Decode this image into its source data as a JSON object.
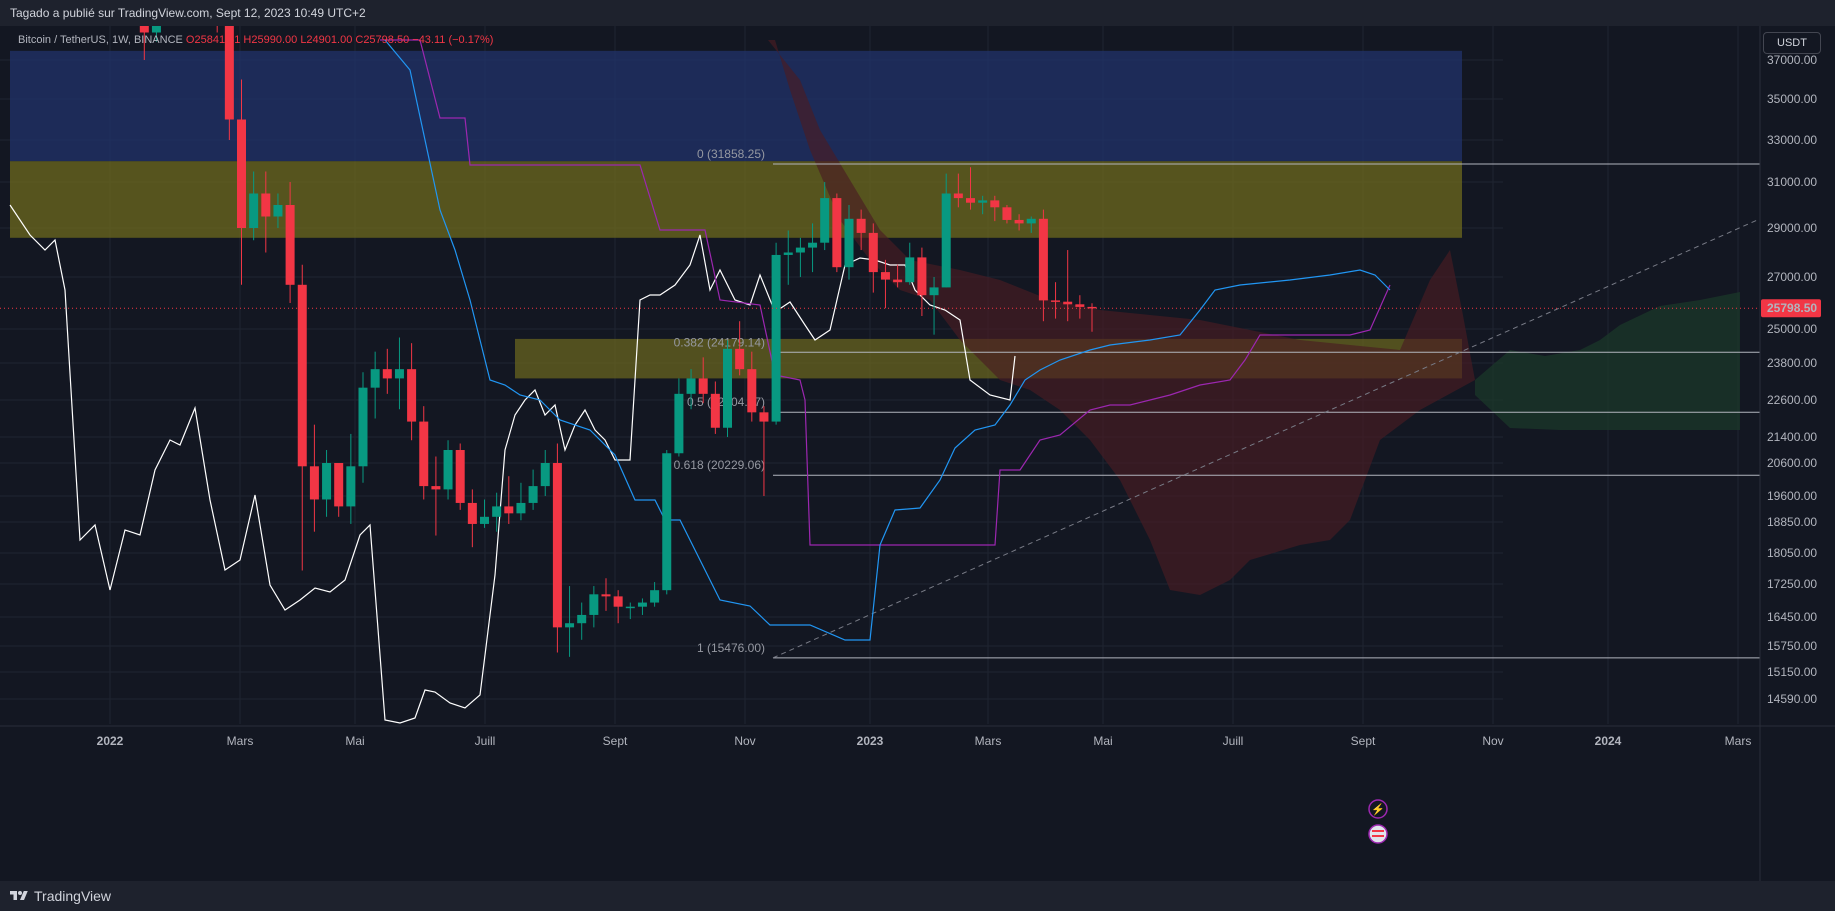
{
  "header": {
    "publish_line": "Tagado a publié sur TradingView.com, Sept 12, 2023 10:49 UTC+2"
  },
  "legend": {
    "symbol": "Bitcoin / TetherUS, 1W, BINANCE",
    "o": "O25841.61",
    "h": "H25990.00",
    "l": "L24901.00",
    "c": "C25798.50",
    "change": "−43.11 (−0.17%)"
  },
  "currency_button": "USDT",
  "footer": {
    "brand": "TradingView"
  },
  "colors": {
    "background": "#131722",
    "up": "#089981",
    "down": "#f23645",
    "tenkan": "#2196f3",
    "kijun": "#9c27b0",
    "chikou": "#ffffff",
    "cloud_bull": "#1b3a2a",
    "cloud_bear": "#4a1c24",
    "zone_top": "#22336b",
    "zone_yellow": "#6e6a1e"
  },
  "chart_data": {
    "type": "candlestick",
    "symbol": "Bitcoin / TetherUS",
    "interval": "1W",
    "exchange": "BINANCE",
    "last_price": "25798.50",
    "x_tick_labels": [
      "2022",
      "Mars",
      "Mai",
      "Juill",
      "Sept",
      "Nov",
      "2023",
      "Mars",
      "Mai",
      "Juill",
      "Sept",
      "Nov",
      "2024",
      "Mars"
    ],
    "y_tick_labels": [
      "37000.00",
      "35000.00",
      "33000.00",
      "31000.00",
      "29000.00",
      "27000.00",
      "25000.00",
      "23800.00",
      "22600.00",
      "21400.00",
      "20600.00",
      "19600.00",
      "18850.00",
      "18050.00",
      "17250.00",
      "16450.00",
      "15750.00",
      "15150.00",
      "14590.00"
    ],
    "fibonacci_levels": [
      {
        "label": "0 (31858.25)",
        "price": 31858.25
      },
      {
        "label": "0.382 (24179.14)",
        "price": 24179.14
      },
      {
        "label": "0.5 (22204.47)",
        "price": 22204.47
      },
      {
        "label": "0.618 (20229.06)",
        "price": 20229.06
      },
      {
        "label": "1 (15476.00)",
        "price": 15476.0
      }
    ],
    "candles": [
      [
        47000,
        48500,
        40500,
        43000
      ],
      [
        43000,
        44000,
        39500,
        42000
      ],
      [
        42000,
        43000,
        37000,
        38500
      ],
      [
        38500,
        44000,
        38000,
        42500
      ],
      [
        42500,
        45500,
        39000,
        44500
      ],
      [
        44500,
        48000,
        43000,
        46800
      ],
      [
        46800,
        47500,
        41500,
        42500
      ],
      [
        42500,
        44500,
        40500,
        43500
      ],
      [
        43500,
        44000,
        38500,
        39500
      ],
      [
        39500,
        40500,
        33000,
        34000
      ],
      [
        34000,
        36000,
        26700,
        29000
      ],
      [
        29000,
        31500,
        28500,
        30500
      ],
      [
        30500,
        31500,
        28000,
        29500
      ],
      [
        29500,
        30500,
        29000,
        30000
      ],
      [
        30000,
        31000,
        26000,
        26700
      ],
      [
        26700,
        27500,
        17600,
        20500
      ],
      [
        20500,
        21800,
        18600,
        19500
      ],
      [
        19500,
        21000,
        19000,
        20600
      ],
      [
        20600,
        20600,
        19000,
        19300
      ],
      [
        19300,
        21500,
        18800,
        20500
      ],
      [
        20500,
        23500,
        20000,
        23000
      ],
      [
        23000,
        24200,
        22000,
        23600
      ],
      [
        23600,
        24300,
        22800,
        23300
      ],
      [
        23300,
        24700,
        22300,
        23600
      ],
      [
        23600,
        24500,
        21300,
        21900
      ],
      [
        21900,
        22400,
        19500,
        19900
      ],
      [
        19900,
        20800,
        18500,
        19800
      ],
      [
        19800,
        21300,
        19500,
        21000
      ],
      [
        21000,
        21200,
        19200,
        19400
      ],
      [
        19400,
        19800,
        18200,
        18800
      ],
      [
        18800,
        19500,
        18700,
        19000
      ],
      [
        19000,
        19700,
        18600,
        19300
      ],
      [
        19300,
        20200,
        18800,
        19100
      ],
      [
        19100,
        20000,
        18900,
        19400
      ],
      [
        19400,
        20400,
        19200,
        19900
      ],
      [
        19900,
        21000,
        19600,
        20600
      ],
      [
        20600,
        21200,
        15600,
        16200
      ],
      [
        16200,
        17200,
        15500,
        16300
      ],
      [
        16300,
        16800,
        15900,
        16500
      ],
      [
        16500,
        17200,
        16200,
        17000
      ],
      [
        17000,
        17400,
        16600,
        16950
      ],
      [
        16950,
        17100,
        16300,
        16700
      ],
      [
        16700,
        16800,
        16400,
        16700
      ],
      [
        16700,
        16900,
        16500,
        16800
      ],
      [
        16800,
        17300,
        16700,
        17100
      ],
      [
        17100,
        21000,
        17000,
        20900
      ],
      [
        20900,
        23300,
        20800,
        22800
      ],
      [
        22800,
        23600,
        22300,
        23300
      ],
      [
        23300,
        24000,
        22500,
        22800
      ],
      [
        22800,
        23200,
        21500,
        21700
      ],
      [
        21700,
        24600,
        21400,
        24300
      ],
      [
        24300,
        25300,
        23400,
        23600
      ],
      [
        23600,
        24200,
        21900,
        22200
      ],
      [
        22200,
        22400,
        19600,
        21900
      ],
      [
        21900,
        28400,
        21800,
        27900
      ],
      [
        27900,
        28900,
        26700,
        28000
      ],
      [
        28000,
        28600,
        27000,
        28200
      ],
      [
        28200,
        29200,
        27200,
        28400
      ],
      [
        28400,
        31000,
        28100,
        30300
      ],
      [
        30300,
        30500,
        27200,
        27400
      ],
      [
        27400,
        30000,
        26900,
        29400
      ],
      [
        29400,
        29800,
        28100,
        28800
      ],
      [
        28800,
        29200,
        26400,
        27200
      ],
      [
        27200,
        27700,
        25800,
        26900
      ],
      [
        26900,
        27500,
        26600,
        26800
      ],
      [
        26800,
        28400,
        26700,
        27800
      ],
      [
        27800,
        28200,
        25500,
        26300
      ],
      [
        26300,
        27000,
        24800,
        26600
      ],
      [
        26600,
        31400,
        26600,
        30500
      ],
      [
        30500,
        31400,
        29900,
        30300
      ],
      [
        30300,
        31700,
        29800,
        30100
      ],
      [
        30100,
        30400,
        29600,
        30200
      ],
      [
        30200,
        30400,
        29300,
        29900
      ],
      [
        29900,
        30000,
        29200,
        29350
      ],
      [
        29350,
        29600,
        28900,
        29200
      ],
      [
        29200,
        29500,
        28800,
        29400
      ],
      [
        29400,
        29800,
        25300,
        26100
      ],
      [
        26100,
        26800,
        25400,
        26050
      ],
      [
        26050,
        28100,
        25300,
        25950
      ],
      [
        25950,
        26300,
        25400,
        25850
      ],
      [
        25850,
        25990,
        24901,
        25798.5
      ]
    ]
  }
}
